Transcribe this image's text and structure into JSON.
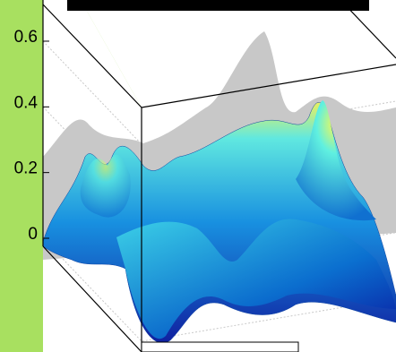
{
  "chart_data": {
    "type": "surface",
    "zlim": [
      0,
      0.7
    ],
    "zticks": [
      0,
      0.2,
      0.4,
      0.6
    ],
    "grid": true
  }
}
